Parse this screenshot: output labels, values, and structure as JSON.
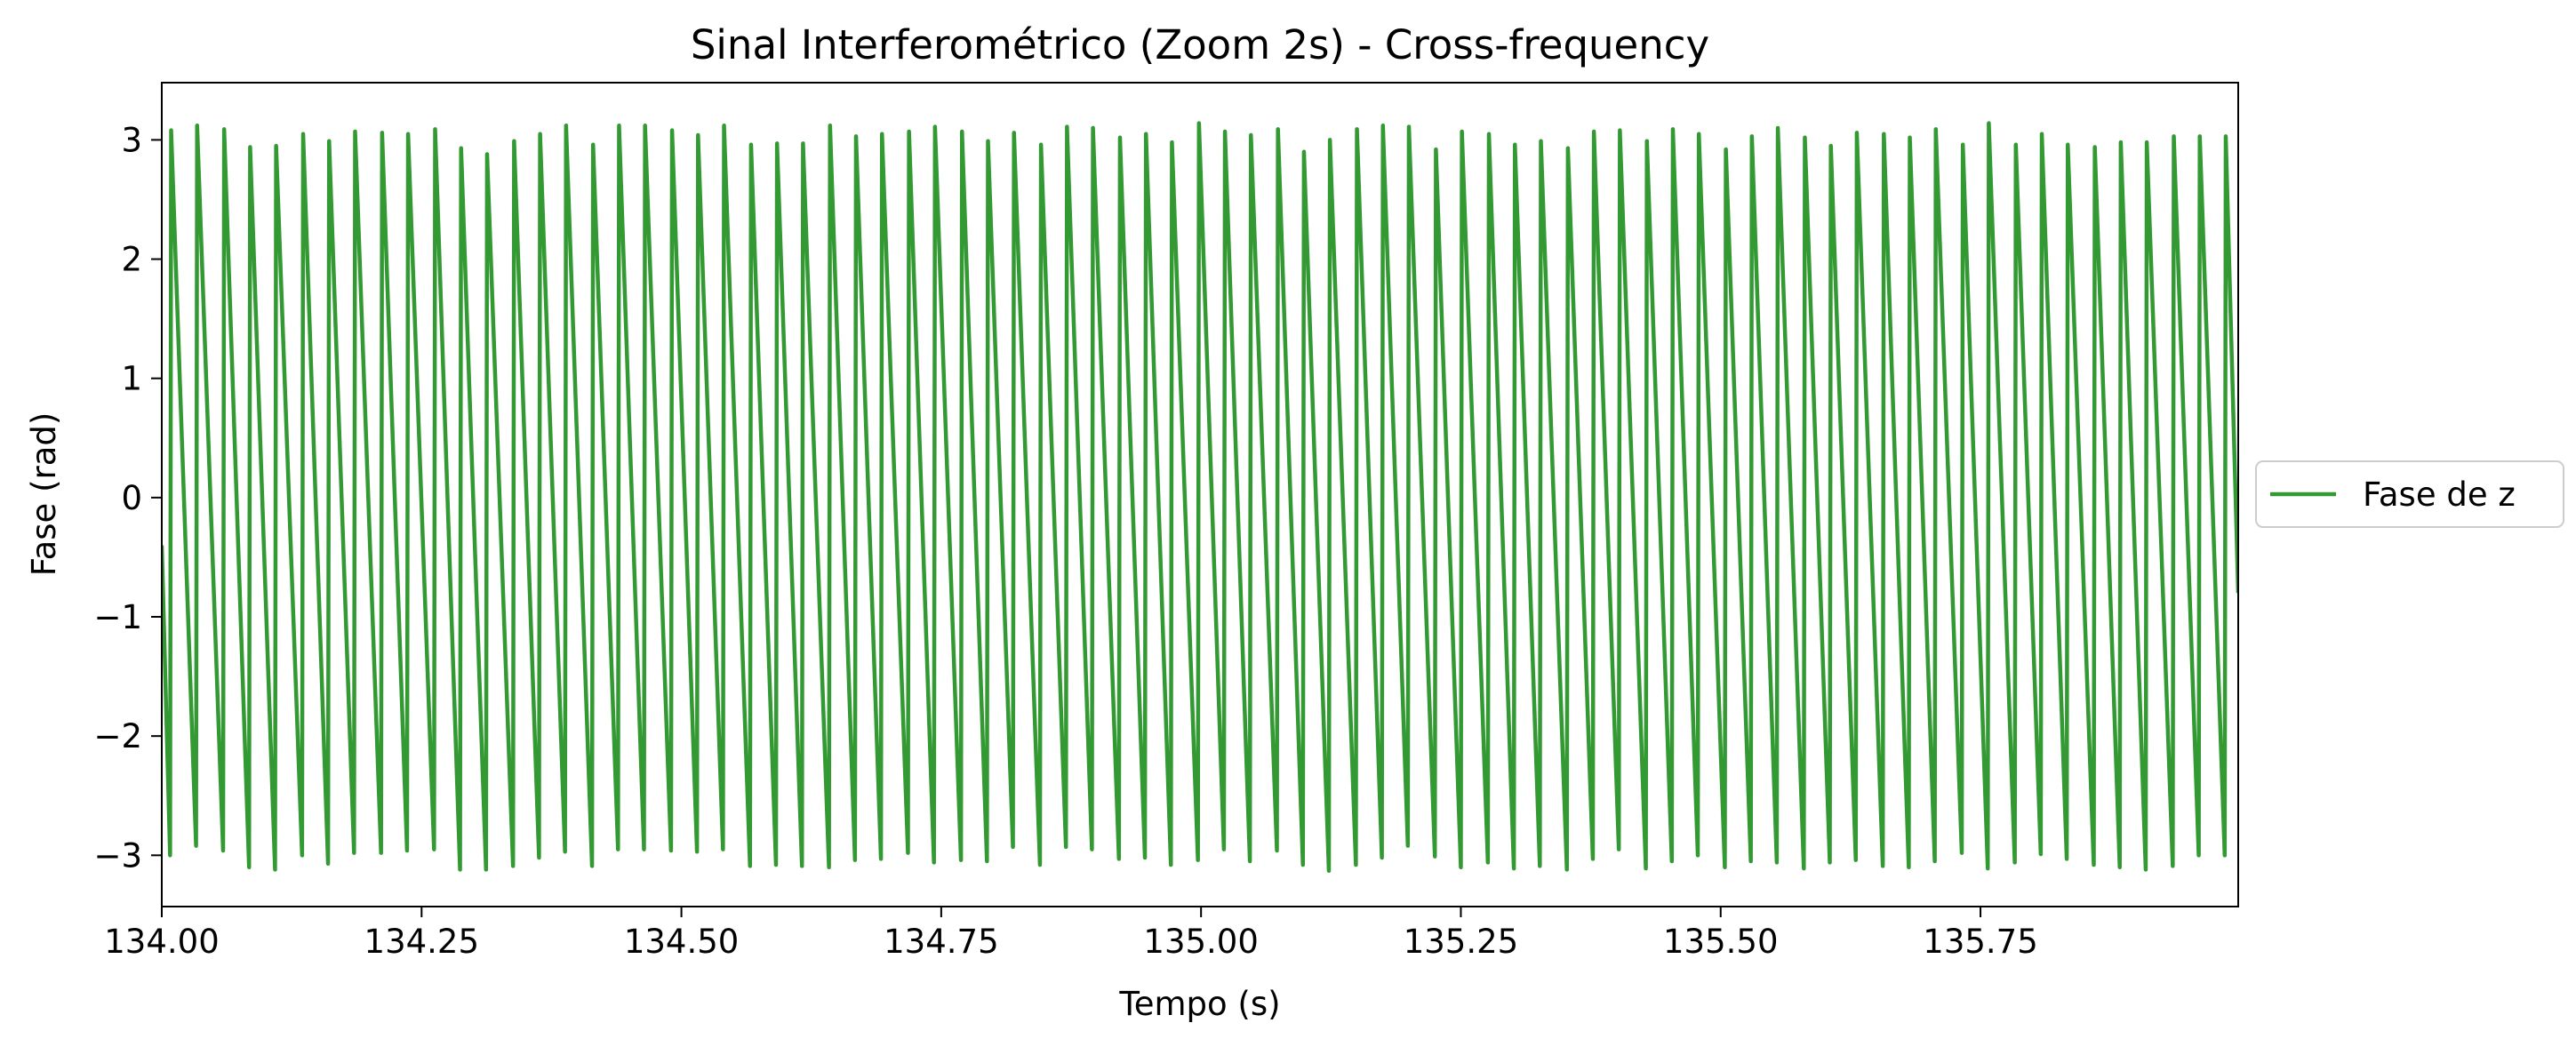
{
  "chart_data": {
    "type": "line",
    "title": "Sinal Interferométrico (Zoom 2s) - Cross-frequency",
    "xlabel": "Tempo (s)",
    "ylabel": "Fase (rad)",
    "xlim": [
      134.0,
      135.998
    ],
    "ylim": [
      -3.43,
      3.48
    ],
    "xticks": [
      {
        "value": 134.0,
        "label": "134.00"
      },
      134.25,
      {
        "value": 134.5,
        "label": "134.50"
      },
      134.75,
      {
        "value": 135.0,
        "label": "135.00"
      },
      135.25,
      {
        "value": 135.5,
        "label": "135.50"
      },
      135.75
    ],
    "yticks": [
      {
        "value": -3,
        "label": "−3"
      },
      {
        "value": -2,
        "label": "−2"
      },
      {
        "value": -1,
        "label": "−1"
      },
      0,
      1,
      2,
      3
    ],
    "grid": false,
    "legend": "right",
    "series": [
      {
        "name": "Fase de z",
        "color": "#339933",
        "x": [
          134.0,
          134.008,
          134.009,
          134.033,
          134.034,
          134.059,
          134.06,
          134.084,
          134.085,
          134.109,
          134.11,
          134.135,
          134.136,
          134.16,
          134.161,
          134.185,
          134.186,
          134.211,
          134.212,
          134.236,
          134.237,
          134.262,
          134.263,
          134.287,
          134.288,
          134.312,
          134.313,
          134.338,
          134.339,
          134.363,
          134.364,
          134.388,
          134.389,
          134.414,
          134.415,
          134.439,
          134.44,
          134.464,
          134.465,
          134.49,
          134.491,
          134.515,
          134.516,
          134.54,
          134.541,
          134.566,
          134.567,
          134.591,
          134.592,
          134.616,
          134.617,
          134.642,
          134.643,
          134.667,
          134.668,
          134.692,
          134.693,
          134.718,
          134.719,
          134.743,
          134.744,
          134.769,
          134.77,
          134.794,
          134.795,
          134.819,
          134.82,
          134.845,
          134.846,
          134.87,
          134.871,
          134.895,
          134.896,
          134.921,
          134.922,
          134.946,
          134.947,
          134.971,
          134.972,
          134.997,
          134.998,
          135.022,
          135.023,
          135.047,
          135.048,
          135.073,
          135.074,
          135.098,
          135.099,
          135.123,
          135.124,
          135.149,
          135.15,
          135.174,
          135.175,
          135.199,
          135.2,
          135.225,
          135.226,
          135.25,
          135.251,
          135.276,
          135.277,
          135.301,
          135.302,
          135.326,
          135.327,
          135.352,
          135.353,
          135.377,
          135.378,
          135.402,
          135.403,
          135.428,
          135.429,
          135.453,
          135.454,
          135.478,
          135.479,
          135.504,
          135.505,
          135.529,
          135.53,
          135.554,
          135.555,
          135.58,
          135.581,
          135.605,
          135.606,
          135.63,
          135.631,
          135.656,
          135.657,
          135.681,
          135.682,
          135.706,
          135.707,
          135.732,
          135.733,
          135.757,
          135.758,
          135.783,
          135.784,
          135.808,
          135.809,
          135.833,
          135.834,
          135.859,
          135.86,
          135.884,
          135.885,
          135.909,
          135.91,
          135.935,
          135.936,
          135.96,
          135.961,
          135.985,
          135.986,
          135.998
        ],
        "values": [
          -0.4,
          -3.0,
          3.08,
          -2.92,
          3.12,
          -2.96,
          3.09,
          -3.1,
          2.94,
          -3.12,
          2.95,
          -3.0,
          3.05,
          -3.07,
          2.99,
          -2.98,
          3.07,
          -2.98,
          3.06,
          -2.96,
          3.05,
          -2.95,
          3.09,
          -3.12,
          2.93,
          -3.12,
          2.88,
          -3.09,
          2.99,
          -3.02,
          3.05,
          -2.97,
          3.12,
          -3.09,
          2.96,
          -2.95,
          3.12,
          -2.95,
          3.12,
          -2.96,
          3.08,
          -2.97,
          3.04,
          -2.95,
          3.12,
          -3.09,
          2.96,
          -3.08,
          2.97,
          -3.09,
          2.97,
          -3.1,
          3.12,
          -3.04,
          3.03,
          -3.03,
          3.05,
          -2.98,
          3.07,
          -3.06,
          3.11,
          -3.04,
          3.07,
          -3.05,
          2.99,
          -2.93,
          3.06,
          -3.08,
          2.96,
          -2.93,
          3.11,
          -2.95,
          3.1,
          -3.03,
          3.02,
          -3.02,
          3.05,
          -3.08,
          2.98,
          -3.04,
          3.14,
          -2.95,
          3.07,
          -3.05,
          3.04,
          -2.96,
          3.09,
          -3.08,
          2.9,
          -3.13,
          3.0,
          -3.08,
          3.09,
          -3.02,
          3.12,
          -2.92,
          3.11,
          -3.01,
          2.92,
          -3.1,
          3.07,
          -3.06,
          3.05,
          -3.11,
          2.96,
          -3.09,
          2.99,
          -3.12,
          2.93,
          -3.03,
          3.07,
          -2.95,
          3.08,
          -3.11,
          2.99,
          -3.05,
          3.09,
          -3.0,
          3.05,
          -3.1,
          2.92,
          -3.05,
          3.03,
          -3.06,
          3.1,
          -3.11,
          3.02,
          -3.06,
          2.95,
          -3.04,
          3.06,
          -3.09,
          3.05,
          -3.1,
          3.02,
          -3.05,
          3.09,
          -2.98,
          2.96,
          -3.11,
          3.14,
          -3.06,
          2.96,
          -2.99,
          3.05,
          -3.03,
          2.96,
          -3.08,
          2.94,
          -3.1,
          2.98,
          -3.12,
          2.98,
          -3.09,
          3.03,
          -3.0,
          3.03,
          -3.0,
          3.03,
          -0.8
        ]
      }
    ]
  }
}
